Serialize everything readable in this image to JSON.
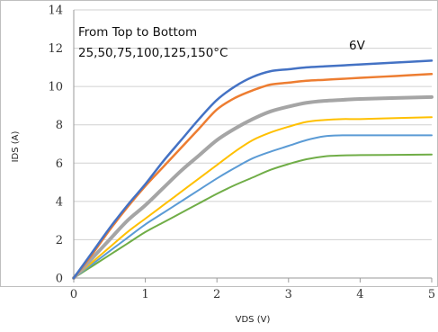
{
  "chart_data": {
    "type": "line",
    "title": "",
    "xlabel": "VDS  (V)",
    "ylabel": "IDS  (A)",
    "xlim": [
      0,
      5
    ],
    "ylim": [
      0,
      14
    ],
    "xticks": [
      "0",
      "1",
      "2",
      "3",
      "4",
      "5"
    ],
    "yticks": [
      "0",
      "2",
      "4",
      "6",
      "8",
      "10",
      "12",
      "14"
    ],
    "grid": "horizontal",
    "annotations": {
      "line1": "From Top  to  Bottom",
      "line2": "25,50,75,100,125,150°C",
      "gate": "6V"
    },
    "x": [
      0,
      0.25,
      0.5,
      0.75,
      1.0,
      1.25,
      1.5,
      1.75,
      2.0,
      2.25,
      2.5,
      2.75,
      3.0,
      3.25,
      3.5,
      3.75,
      4.0,
      4.5,
      5.0
    ],
    "series": [
      {
        "color": "#4472c4",
        "width": 2.5,
        "values": [
          0,
          1.3,
          2.6,
          3.8,
          4.9,
          6.1,
          7.2,
          8.3,
          9.3,
          10.0,
          10.5,
          10.8,
          10.9,
          11.0,
          11.05,
          11.1,
          11.15,
          11.25,
          11.35
        ]
      },
      {
        "color": "#ed7d31",
        "width": 2.5,
        "values": [
          0,
          1.2,
          2.5,
          3.7,
          4.8,
          5.8,
          6.8,
          7.8,
          8.8,
          9.4,
          9.8,
          10.1,
          10.2,
          10.3,
          10.35,
          10.4,
          10.45,
          10.55,
          10.65
        ]
      },
      {
        "color": "#a5a5a5",
        "width": 4,
        "values": [
          0,
          1.0,
          2.0,
          3.0,
          3.8,
          4.7,
          5.6,
          6.4,
          7.2,
          7.8,
          8.3,
          8.7,
          8.95,
          9.15,
          9.25,
          9.3,
          9.35,
          9.4,
          9.45
        ]
      },
      {
        "color": "#ffc000",
        "width": 2,
        "values": [
          0,
          0.8,
          1.6,
          2.4,
          3.1,
          3.8,
          4.5,
          5.2,
          5.9,
          6.6,
          7.2,
          7.6,
          7.9,
          8.15,
          8.25,
          8.3,
          8.3,
          8.35,
          8.4
        ]
      },
      {
        "color": "#5b9bd5",
        "width": 2,
        "values": [
          0,
          0.7,
          1.4,
          2.1,
          2.8,
          3.4,
          4.0,
          4.6,
          5.2,
          5.75,
          6.25,
          6.6,
          6.9,
          7.2,
          7.4,
          7.45,
          7.45,
          7.45,
          7.45
        ]
      },
      {
        "color": "#70ad47",
        "width": 2,
        "values": [
          0,
          0.6,
          1.2,
          1.8,
          2.4,
          2.9,
          3.4,
          3.9,
          4.4,
          4.85,
          5.25,
          5.65,
          5.95,
          6.2,
          6.35,
          6.4,
          6.42,
          6.43,
          6.45
        ]
      }
    ]
  }
}
